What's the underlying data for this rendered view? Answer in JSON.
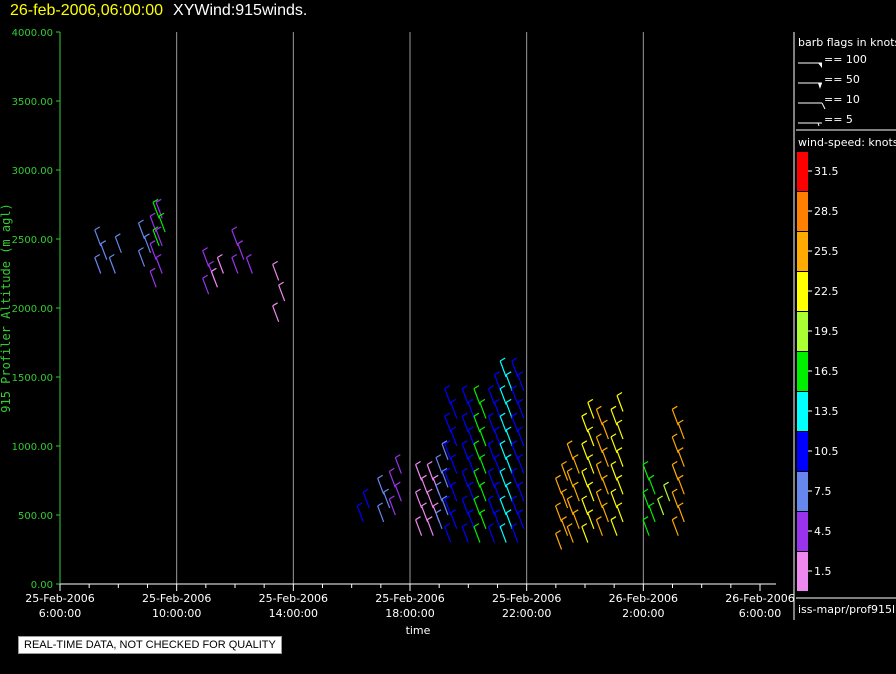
{
  "header": {
    "datetime": "26-feb-2006,06:00:00",
    "product": "XYWind:915winds."
  },
  "notice": "REAL-TIME DATA, NOT CHECKED FOR QUALITY",
  "source": "iss-mapr/prof915l",
  "legend": {
    "barb_title": "barb flags in knots",
    "barbs": [
      "== 100",
      "== 50",
      "== 10",
      "== 5"
    ],
    "speed_title": "wind-speed: knots",
    "bins": [
      {
        "label": "31.5",
        "color": "#ff0000"
      },
      {
        "label": "28.5",
        "color": "#ff7f00"
      },
      {
        "label": "25.5",
        "color": "#ffaa00"
      },
      {
        "label": "22.5",
        "color": "#ffff00"
      },
      {
        "label": "19.5",
        "color": "#aaff33"
      },
      {
        "label": "16.5",
        "color": "#00ee00"
      },
      {
        "label": "13.5",
        "color": "#00ffff"
      },
      {
        "label": "10.5",
        "color": "#0000ff"
      },
      {
        "label": "7.5",
        "color": "#6688ee"
      },
      {
        "label": "4.5",
        "color": "#9933ee"
      },
      {
        "label": "1.5",
        "color": "#ee88ee"
      }
    ]
  },
  "chart_data": {
    "type": "scatter",
    "xlabel": "time",
    "ylabel": "915 Profiler Altitude (m agl)",
    "ylim": [
      0,
      4000
    ],
    "xlim_hours": [
      6,
      30
    ],
    "yticks": [
      "0.00",
      "500.00",
      "1000.00",
      "1500.00",
      "2000.00",
      "2500.00",
      "3000.00",
      "3500.00",
      "4000.00"
    ],
    "xticks": [
      {
        "date": "25-Feb-2006",
        "time": "6:00:00"
      },
      {
        "date": "25-Feb-2006",
        "time": "10:00:00"
      },
      {
        "date": "25-Feb-2006",
        "time": "14:00:00"
      },
      {
        "date": "25-Feb-2006",
        "time": "18:00:00"
      },
      {
        "date": "25-Feb-2006",
        "time": "22:00:00"
      },
      {
        "date": "26-Feb-2006",
        "time": "2:00:00"
      },
      {
        "date": "26-Feb-2006",
        "time": "6:00:00"
      }
    ],
    "grid": "vertical lines at major ticks",
    "profiles": [
      {
        "hour": 7.5,
        "low": 2250,
        "high": 2500,
        "step": 100,
        "color": "#6688ee"
      },
      {
        "hour": 8.0,
        "low": 2250,
        "high": 2500,
        "step": 150,
        "color": "#6688ee"
      },
      {
        "hour": 9.0,
        "low": 2300,
        "high": 2550,
        "step": 100,
        "color": "#6688ee"
      },
      {
        "hour": 9.4,
        "low": 2150,
        "high": 2650,
        "step": 100,
        "color": "#9933ee"
      },
      {
        "hour": 9.5,
        "low": 2450,
        "high": 2700,
        "step": 100,
        "color": "#00ee00"
      },
      {
        "hour": 11.2,
        "low": 2100,
        "high": 2350,
        "step": 100,
        "color": "#9933ee"
      },
      {
        "hour": 11.5,
        "low": 2150,
        "high": 2300,
        "step": 100,
        "color": "#ee88ee"
      },
      {
        "hour": 12.2,
        "low": 2250,
        "high": 2450,
        "step": 100,
        "color": "#9933ee"
      },
      {
        "hour": 12.7,
        "low": 2250,
        "high": 2300,
        "step": 100,
        "color": "#9933ee"
      },
      {
        "hour": 13.6,
        "low": 1900,
        "high": 2200,
        "step": 150,
        "color": "#ee88ee"
      },
      {
        "hour": 16.5,
        "low": 450,
        "high": 550,
        "step": 100,
        "color": "#0000ff"
      },
      {
        "hour": 17.2,
        "low": 450,
        "high": 700,
        "step": 100,
        "color": "#6688ee"
      },
      {
        "hour": 17.6,
        "low": 500,
        "high": 800,
        "step": 100,
        "color": "#9933ee"
      },
      {
        "hour": 18.5,
        "low": 350,
        "high": 800,
        "step": 100,
        "color": "#ee88ee"
      },
      {
        "hour": 18.9,
        "low": 350,
        "high": 800,
        "step": 100,
        "color": "#ee88ee"
      },
      {
        "hour": 19.2,
        "low": 400,
        "high": 900,
        "step": 100,
        "color": "#6688ee"
      },
      {
        "hour": 19.5,
        "low": 300,
        "high": 1350,
        "step": 100,
        "color": "#0000ff"
      },
      {
        "hour": 20.1,
        "low": 300,
        "high": 1350,
        "step": 100,
        "color": "#0000ff"
      },
      {
        "hour": 20.5,
        "low": 300,
        "high": 1350,
        "step": 100,
        "color": "#00ee00"
      },
      {
        "hour": 21.0,
        "low": 300,
        "high": 1450,
        "step": 100,
        "color": "#0000ff"
      },
      {
        "hour": 21.4,
        "low": 300,
        "high": 1500,
        "step": 100,
        "color": "#00ffff"
      },
      {
        "hour": 21.8,
        "low": 300,
        "high": 1550,
        "step": 100,
        "color": "#0000ff"
      },
      {
        "hour": 23.3,
        "low": 250,
        "high": 800,
        "step": 100,
        "color": "#ffaa00"
      },
      {
        "hour": 23.7,
        "low": 300,
        "high": 950,
        "step": 100,
        "color": "#ffaa00"
      },
      {
        "hour": 24.2,
        "low": 300,
        "high": 1250,
        "step": 100,
        "color": "#ffff00"
      },
      {
        "hour": 24.7,
        "low": 350,
        "high": 1200,
        "step": 100,
        "color": "#ffaa00"
      },
      {
        "hour": 25.2,
        "low": 350,
        "high": 1250,
        "step": 100,
        "color": "#ffff00"
      },
      {
        "hour": 26.3,
        "low": 350,
        "high": 750,
        "step": 100,
        "color": "#00ee00"
      },
      {
        "hour": 26.8,
        "low": 500,
        "high": 650,
        "step": 100,
        "color": "#aaff33"
      },
      {
        "hour": 27.3,
        "low": 350,
        "high": 1150,
        "step": 100,
        "color": "#ffaa00"
      }
    ]
  }
}
